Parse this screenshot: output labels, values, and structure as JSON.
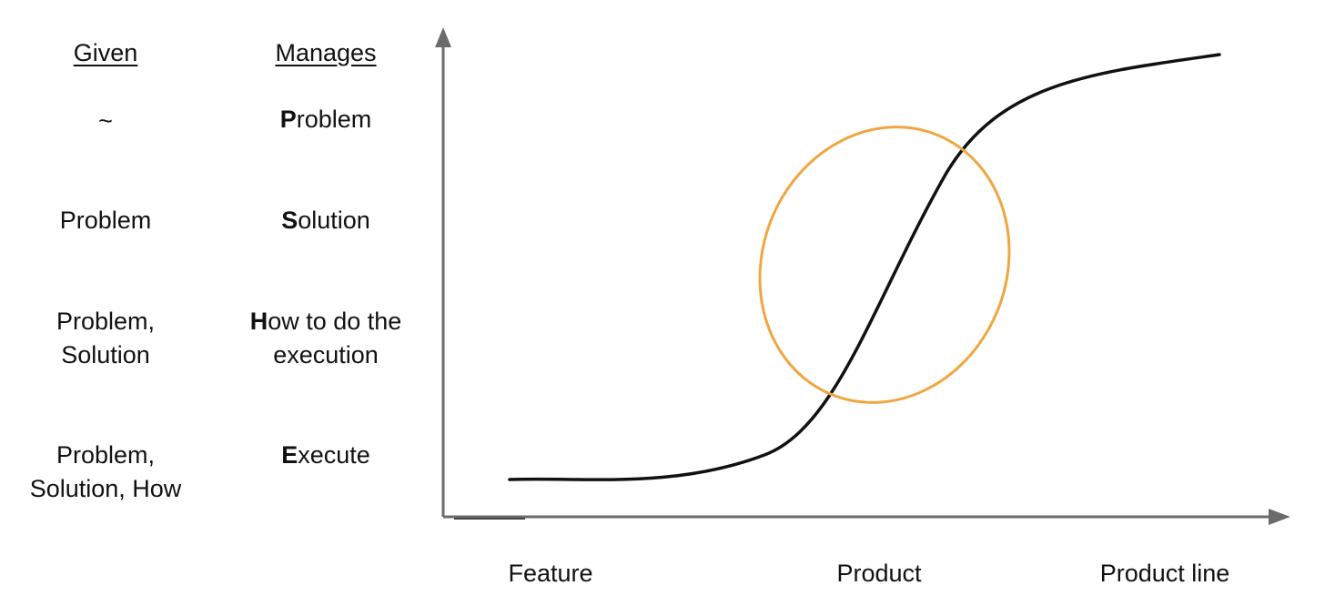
{
  "table": {
    "given_header": "Given",
    "manages_header": "Manages",
    "rows": [
      {
        "given": [
          "~"
        ],
        "manages_lead": "P",
        "manages_rest": [
          "roblem"
        ]
      },
      {
        "given": [
          "Problem"
        ],
        "manages_lead": "S",
        "manages_rest": [
          "olution"
        ]
      },
      {
        "given": [
          "Problem,",
          "Solution"
        ],
        "manages_lead": "H",
        "manages_rest": [
          "ow to do the",
          "execution"
        ]
      },
      {
        "given": [
          "Problem,",
          "Solution, How"
        ],
        "manages_lead": "E",
        "manages_rest": [
          "xecute"
        ]
      }
    ]
  },
  "diagram": {
    "x_labels": [
      "Feature",
      "Product",
      "Product line"
    ],
    "curve_color": "#111111",
    "axis_color": "#6b6b6b",
    "highlight_color": "#f0a640"
  }
}
